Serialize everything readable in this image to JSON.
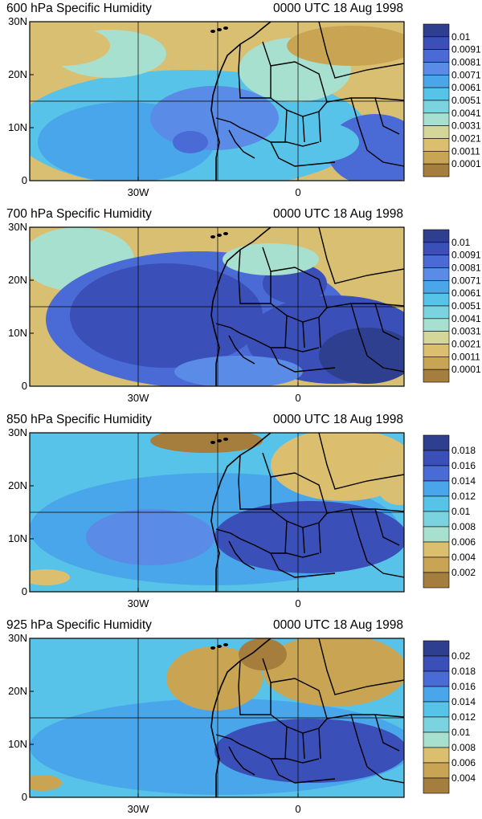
{
  "panels": [
    {
      "title_left": "600 hPa Specific Humidity",
      "title_right": "0000 UTC 18 Aug 1998",
      "colorbar_labels": [
        "0.01",
        "0.0091",
        "0.0081",
        "0.0071",
        "0.0061",
        "0.0051",
        "0.0041",
        "0.0031",
        "0.0021",
        "0.0011",
        "0.0001"
      ]
    },
    {
      "title_left": "700 hPa Specific Humidity",
      "title_right": "0000 UTC 18 Aug 1998",
      "colorbar_labels": [
        "0.01",
        "0.0091",
        "0.0081",
        "0.0071",
        "0.0061",
        "0.0051",
        "0.0041",
        "0.0031",
        "0.0021",
        "0.0011",
        "0.0001"
      ]
    },
    {
      "title_left": "850 hPa Specific Humidity",
      "title_right": "0000 UTC 18 Aug 1998",
      "colorbar_labels": [
        "0.018",
        "0.016",
        "0.014",
        "0.012",
        "0.01",
        "0.008",
        "0.006",
        "0.004",
        "0.002"
      ]
    },
    {
      "title_left": "925 hPa Specific Humidity",
      "title_right": "0000 UTC 18 Aug 1998",
      "colorbar_labels": [
        "0.02",
        "0.018",
        "0.016",
        "0.014",
        "0.012",
        "0.01",
        "0.008",
        "0.006",
        "0.004"
      ]
    }
  ],
  "axes": {
    "y_ticks": [
      "30N",
      "20N",
      "10N",
      "0"
    ],
    "x_ticks": [
      "30W",
      "0"
    ]
  },
  "palette": [
    "#2f3f8f",
    "#3a4fb8",
    "#4a6ad6",
    "#5a8be6",
    "#4aa6ea",
    "#58c3e8",
    "#7ad3df",
    "#a8e0cf",
    "#d4d69a",
    "#dcbf6e",
    "#c9a553",
    "#a57d3c"
  ],
  "colors": {
    "land_border": "#000000",
    "ocean_moist": "#4a8fe0",
    "sahara_dry": "#c9a553"
  }
}
